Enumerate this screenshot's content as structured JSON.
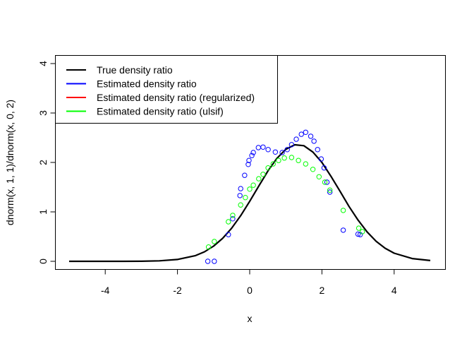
{
  "chart_data": {
    "type": "scatter",
    "title": "",
    "xlabel": "x",
    "ylabel": "dnorm(x, 1, 1)/dnorm(x, 0, 2)",
    "xlim": [
      -5,
      5
    ],
    "ylim": [
      0,
      4
    ],
    "xticks": [
      -4,
      -2,
      0,
      2,
      4
    ],
    "yticks": [
      0,
      1,
      2,
      3,
      4
    ],
    "xtick_labels": [
      "-4",
      "-2",
      "0",
      "2",
      "4"
    ],
    "ytick_labels": [
      "0",
      "1",
      "2",
      "3",
      "4"
    ],
    "grid": false,
    "legend_position": "top-left",
    "legend": [
      {
        "label": "True density ratio",
        "color": "#000000"
      },
      {
        "label": "Estimated density ratio",
        "color": "#0000FF"
      },
      {
        "label": "Estimated density ratio (regularized)",
        "color": "#FF0000"
      },
      {
        "label": "Estimated density ratio (ulsif)",
        "color": "#00FF00"
      }
    ],
    "series": [
      {
        "name": "True density ratio",
        "kind": "line",
        "color": "#000000",
        "x": [
          -5,
          -4.5,
          -4,
          -3.5,
          -3,
          -2.5,
          -2,
          -1.5,
          -1.25,
          -1,
          -0.75,
          -0.5,
          -0.25,
          0,
          0.25,
          0.5,
          0.75,
          1,
          1.25,
          1.5,
          1.75,
          2,
          2.25,
          2.5,
          2.75,
          3,
          3.25,
          3.5,
          3.75,
          4,
          4.5,
          5
        ],
        "y": [
          0,
          0,
          0,
          0.0005,
          0.002,
          0.0096,
          0.037,
          0.116,
          0.193,
          0.307,
          0.464,
          0.67,
          0.923,
          1.213,
          1.52,
          1.821,
          2.08,
          2.266,
          2.357,
          2.338,
          2.21,
          2.0,
          1.72,
          1.418,
          1.11,
          0.834,
          0.596,
          0.406,
          0.264,
          0.164,
          0.055,
          0.015
        ]
      },
      {
        "name": "Estimated density ratio",
        "kind": "points",
        "color": "#0000FF",
        "x": [
          -1.16,
          -0.98,
          -0.59,
          -0.47,
          -0.27,
          -0.25,
          -0.14,
          -0.04,
          -0.02,
          0.06,
          0.1,
          0.24,
          0.37,
          0.51,
          0.71,
          0.9,
          1.04,
          1.16,
          1.29,
          1.43,
          1.55,
          1.69,
          1.78,
          1.88,
          1.98,
          2.06,
          2.14,
          2.22,
          2.59,
          3.0,
          3.06
        ],
        "y": [
          0,
          0,
          0.54,
          0.86,
          1.33,
          1.47,
          1.74,
          1.96,
          2.04,
          2.14,
          2.2,
          2.3,
          2.31,
          2.26,
          2.21,
          2.2,
          2.26,
          2.36,
          2.47,
          2.57,
          2.61,
          2.53,
          2.43,
          2.26,
          2.07,
          1.89,
          1.6,
          1.4,
          0.63,
          0.55,
          0.54
        ]
      },
      {
        "name": "Estimated density ratio (ulsif)",
        "kind": "points",
        "color": "#00FF00",
        "x": [
          -1.14,
          -0.98,
          -0.59,
          -0.47,
          -0.25,
          -0.12,
          0,
          0.1,
          0.25,
          0.37,
          0.51,
          0.65,
          0.8,
          0.96,
          1.16,
          1.35,
          1.55,
          1.75,
          1.92,
          2.08,
          2.22,
          2.59,
          3.02,
          3.12
        ],
        "y": [
          0.29,
          0.4,
          0.8,
          0.93,
          1.14,
          1.29,
          1.46,
          1.54,
          1.67,
          1.76,
          1.89,
          1.97,
          2.04,
          2.09,
          2.1,
          2.04,
          1.97,
          1.86,
          1.71,
          1.6,
          1.44,
          1.03,
          0.67,
          0.6
        ]
      }
    ]
  }
}
